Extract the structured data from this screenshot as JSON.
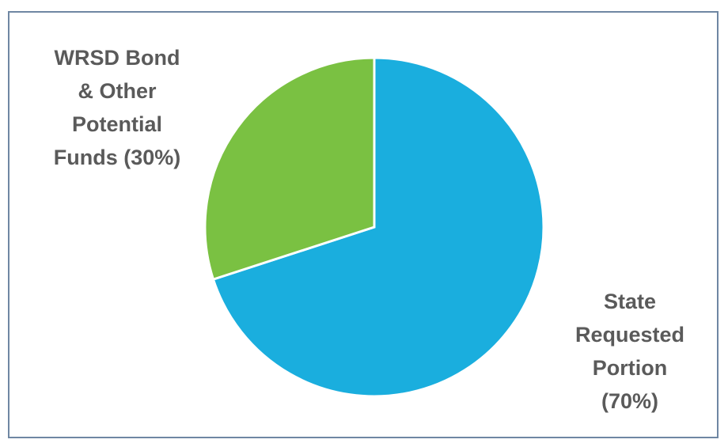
{
  "chart_data": {
    "type": "pie",
    "title": "",
    "slices": [
      {
        "label": "State Requested Portion (70%)",
        "value": 70,
        "color": "#1aaede"
      },
      {
        "label": "WRSD Bond & Other Potential Funds (30%)",
        "value": 30,
        "color": "#7ac142"
      }
    ],
    "start_angle_deg": 0,
    "direction": "clockwise",
    "labels": {
      "green_lines": "WRSD Bond\n& Other\nPotential\nFunds (30%)",
      "blue_lines": "State\nRequested\nPortion\n(70%)"
    }
  }
}
